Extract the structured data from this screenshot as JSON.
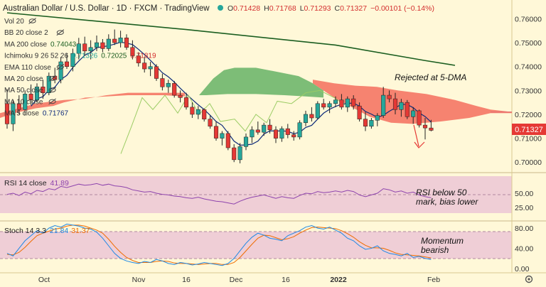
{
  "header": {
    "symbol": "Australian Dollar / U.S. Dollar · 1D · FXCM · TradingView",
    "o_label": "O",
    "o": "0.71428",
    "h_label": "H",
    "h": "0.71768",
    "l_label": "L",
    "l": "0.71293",
    "c_label": "C",
    "c": "0.71327",
    "chg": "−0.00101 (−0.14%)"
  },
  "indicators": [
    {
      "label": "Vol 20",
      "values": []
    },
    {
      "label": "BB 20 close 2",
      "values": []
    },
    {
      "label": "MA 200 close",
      "values": [
        "0.74043"
      ]
    },
    {
      "label": "Ichimoku 9 26 52 26",
      "values": [
        "0.71326",
        "0.72025",
        "0.71819"
      ]
    },
    {
      "label": "EMA 110 close",
      "values": []
    },
    {
      "label": "MA 20 close",
      "values": []
    },
    {
      "label": "MA 50 close",
      "values": []
    },
    {
      "label": "MA 10 close",
      "values": []
    },
    {
      "label": "MA 5 close",
      "values": [
        "0.71767"
      ]
    }
  ],
  "annotations": {
    "rejected": "Rejected at 5-DMA",
    "rsi_note_1": "RSI below 50",
    "rsi_note_2": "mark, bias lower",
    "mom_1": "Momentum",
    "mom_2": "bearish"
  },
  "rsi_panel": {
    "label": "RSI 14 close",
    "value": "41.89"
  },
  "stoch_panel": {
    "label": "Stoch 14 3 3",
    "k": "21.84",
    "d": "31.37"
  },
  "price_tag": "0.71327",
  "colors": {
    "up": "#26a69a",
    "down": "#e53935",
    "ma200": "#1b5e20",
    "ma5": "#0d2a7a",
    "cloud_bull": "#66b366",
    "cloud_bear": "#f46e5e",
    "rsi": "#8e44ad",
    "stoch_k": "#1e88e5",
    "stoch_d": "#ef6c00",
    "panel_bg": "#ecc7d6"
  },
  "chart_data": {
    "type": "candlestick",
    "title": "Australian Dollar / U.S. Dollar · 1D · FXCM",
    "x_ticks": [
      "Oct",
      "Nov",
      "16",
      "Dec",
      "16",
      "2022",
      "Feb"
    ],
    "price_axis": {
      "ticks": [
        "0.76000",
        "0.75000",
        "0.74000",
        "0.73000",
        "0.72000",
        "0.71000",
        "0.70000"
      ],
      "range": [
        0.6965,
        0.7625
      ]
    },
    "last_close": 0.71327,
    "candles": [
      [
        0.7245,
        0.7305,
        0.714,
        0.716
      ],
      [
        0.716,
        0.726,
        0.713,
        0.7245
      ],
      [
        0.7245,
        0.728,
        0.72,
        0.722
      ],
      [
        0.722,
        0.73,
        0.7195,
        0.7285
      ],
      [
        0.7285,
        0.7325,
        0.724,
        0.726
      ],
      [
        0.726,
        0.733,
        0.725,
        0.7315
      ],
      [
        0.7315,
        0.7345,
        0.7265,
        0.729
      ],
      [
        0.729,
        0.7375,
        0.728,
        0.736
      ],
      [
        0.736,
        0.7395,
        0.733,
        0.7345
      ],
      [
        0.7345,
        0.744,
        0.733,
        0.742
      ],
      [
        0.742,
        0.7455,
        0.739,
        0.74
      ],
      [
        0.74,
        0.7475,
        0.738,
        0.7455
      ],
      [
        0.7455,
        0.752,
        0.743,
        0.7495
      ],
      [
        0.7495,
        0.7525,
        0.7445,
        0.7465
      ],
      [
        0.7465,
        0.751,
        0.743,
        0.748
      ],
      [
        0.748,
        0.753,
        0.7465,
        0.75
      ],
      [
        0.75,
        0.7515,
        0.746,
        0.7475
      ],
      [
        0.7475,
        0.7535,
        0.7465,
        0.7515
      ],
      [
        0.7515,
        0.7555,
        0.749,
        0.75
      ],
      [
        0.75,
        0.755,
        0.748,
        0.752
      ],
      [
        0.752,
        0.7535,
        0.747,
        0.748
      ],
      [
        0.748,
        0.751,
        0.743,
        0.7445
      ],
      [
        0.7445,
        0.746,
        0.74,
        0.7415
      ],
      [
        0.7415,
        0.744,
        0.7375,
        0.739
      ],
      [
        0.739,
        0.742,
        0.736,
        0.74
      ],
      [
        0.74,
        0.741,
        0.734,
        0.735
      ],
      [
        0.735,
        0.737,
        0.73,
        0.7315
      ],
      [
        0.7315,
        0.7345,
        0.729,
        0.733
      ],
      [
        0.733,
        0.734,
        0.727,
        0.728
      ],
      [
        0.728,
        0.73,
        0.725,
        0.727
      ],
      [
        0.727,
        0.729,
        0.722,
        0.723
      ],
      [
        0.723,
        0.725,
        0.7185,
        0.72
      ],
      [
        0.72,
        0.7235,
        0.718,
        0.722
      ],
      [
        0.722,
        0.7225,
        0.717,
        0.718
      ],
      [
        0.718,
        0.7195,
        0.714,
        0.715
      ],
      [
        0.715,
        0.717,
        0.709,
        0.71
      ],
      [
        0.71,
        0.713,
        0.707,
        0.712
      ],
      [
        0.712,
        0.713,
        0.705,
        0.706
      ],
      [
        0.706,
        0.7075,
        0.7,
        0.701
      ],
      [
        0.701,
        0.708,
        0.6995,
        0.7065
      ],
      [
        0.7065,
        0.712,
        0.705,
        0.7105
      ],
      [
        0.7105,
        0.715,
        0.708,
        0.7135
      ],
      [
        0.7135,
        0.717,
        0.7115,
        0.7125
      ],
      [
        0.7125,
        0.7165,
        0.711,
        0.7155
      ],
      [
        0.7155,
        0.718,
        0.712,
        0.7135
      ],
      [
        0.7135,
        0.715,
        0.708,
        0.71
      ],
      [
        0.71,
        0.715,
        0.7085,
        0.714
      ],
      [
        0.714,
        0.716,
        0.71,
        0.7115
      ],
      [
        0.7115,
        0.713,
        0.709,
        0.7105
      ],
      [
        0.7105,
        0.7175,
        0.7095,
        0.7165
      ],
      [
        0.7165,
        0.7215,
        0.715,
        0.72
      ],
      [
        0.72,
        0.723,
        0.717,
        0.7185
      ],
      [
        0.7185,
        0.7255,
        0.718,
        0.7245
      ],
      [
        0.7245,
        0.7265,
        0.722,
        0.723
      ],
      [
        0.723,
        0.7255,
        0.7205,
        0.7245
      ],
      [
        0.7245,
        0.7275,
        0.723,
        0.726
      ],
      [
        0.726,
        0.7285,
        0.722,
        0.723
      ],
      [
        0.723,
        0.7275,
        0.721,
        0.7265
      ],
      [
        0.7265,
        0.728,
        0.722,
        0.7235
      ],
      [
        0.7235,
        0.725,
        0.717,
        0.718
      ],
      [
        0.718,
        0.721,
        0.713,
        0.715
      ],
      [
        0.715,
        0.7185,
        0.714,
        0.7175
      ],
      [
        0.7175,
        0.7205,
        0.715,
        0.7195
      ],
      [
        0.7195,
        0.7315,
        0.7185,
        0.728
      ],
      [
        0.728,
        0.73,
        0.725,
        0.7265
      ],
      [
        0.7265,
        0.729,
        0.72,
        0.722
      ],
      [
        0.722,
        0.7265,
        0.719,
        0.725
      ],
      [
        0.725,
        0.726,
        0.718,
        0.719
      ],
      [
        0.719,
        0.723,
        0.716,
        0.7215
      ],
      [
        0.7215,
        0.722,
        0.7145,
        0.7155
      ],
      [
        0.7155,
        0.7185,
        0.7095,
        0.7143
      ],
      [
        0.7143,
        0.7177,
        0.7129,
        0.7133
      ]
    ],
    "ma200": [
      [
        0,
        0.7625
      ],
      [
        30,
        0.7555
      ],
      [
        55,
        0.749
      ],
      [
        70,
        0.7425
      ],
      [
        75,
        0.7405
      ]
    ],
    "rsi": {
      "label": "RSI 14 close",
      "last": 41.89,
      "ticks": [
        50.0,
        25.0
      ]
    },
    "stoch": {
      "label": "Stoch 14 3 3",
      "k_last": 21.84,
      "d_last": 31.37,
      "ticks": [
        80.0,
        40.0,
        0.0
      ]
    }
  }
}
